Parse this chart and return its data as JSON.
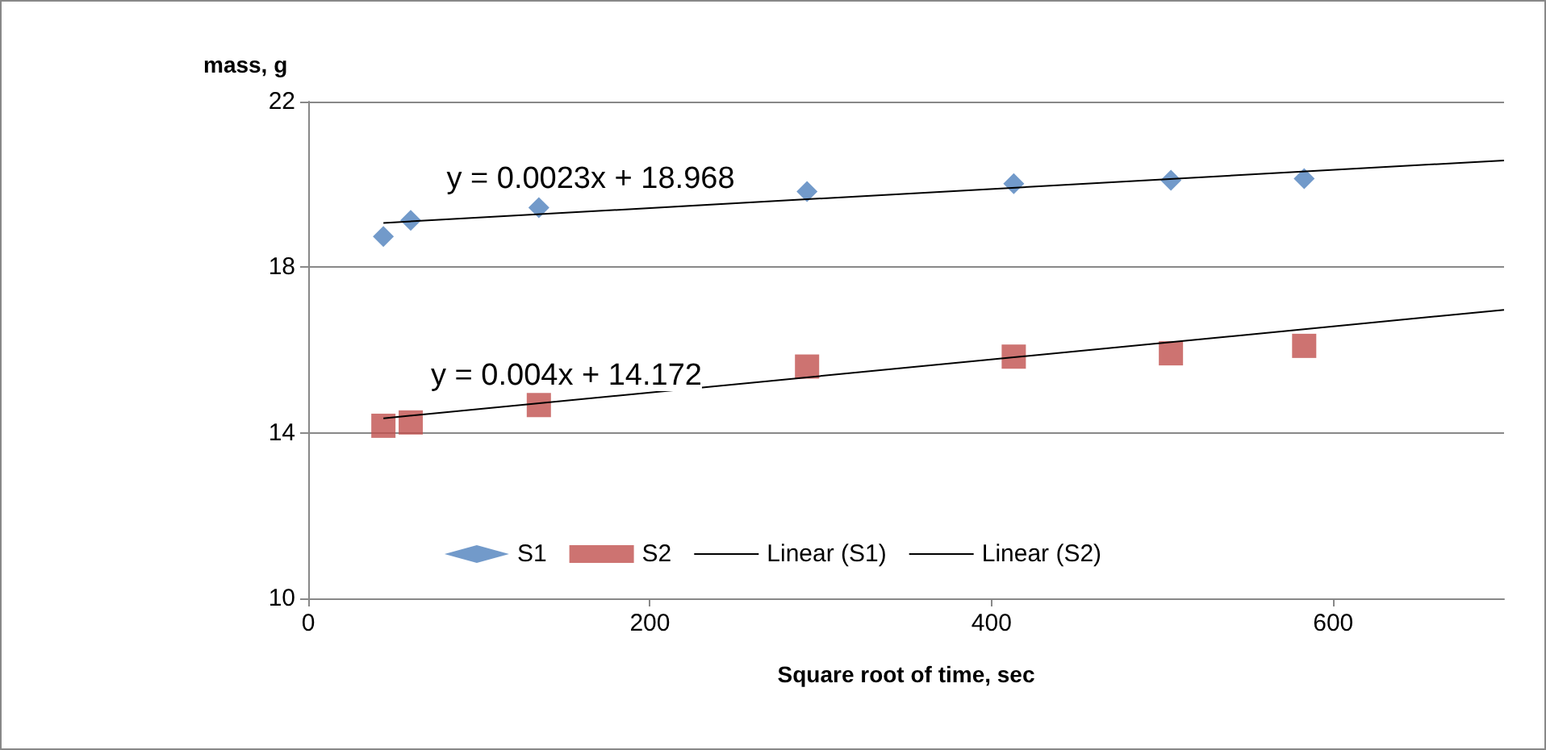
{
  "chart_data": {
    "type": "scatter",
    "xlabel": "Square root of time, sec",
    "ylabel": "mass, g",
    "xlim": [
      0,
      700
    ],
    "xticks": [
      0,
      200,
      400,
      600
    ],
    "ylim": [
      10,
      22
    ],
    "yticks": [
      10,
      14,
      18,
      22
    ],
    "grid": "y",
    "legend": "bottom",
    "series": [
      {
        "name": "S1",
        "color": "#4f81bd",
        "marker": "diamond",
        "x": [
          44,
          60,
          135,
          292,
          413,
          505,
          583
        ],
        "values": [
          18.74,
          19.13,
          19.44,
          19.83,
          20.02,
          20.1,
          20.14
        ]
      },
      {
        "name": "S2",
        "color": "#c0504d",
        "marker": "square",
        "x": [
          44,
          60,
          135,
          292,
          413,
          505,
          583
        ],
        "values": [
          14.17,
          14.25,
          14.67,
          15.6,
          15.84,
          15.92,
          16.1
        ]
      },
      {
        "name": "Linear (S1)",
        "type": "line",
        "color": "#000000",
        "marker": "none",
        "x": [
          44,
          700
        ],
        "values": [
          19.07,
          20.58
        ]
      },
      {
        "name": "Linear (S2)",
        "type": "line",
        "color": "#000000",
        "marker": "none",
        "x": [
          44,
          700
        ],
        "values": [
          14.35,
          16.97
        ]
      }
    ],
    "annotations": [
      "y = 0.0023x + 18.968",
      "y = 0.004x + 14.172"
    ]
  }
}
